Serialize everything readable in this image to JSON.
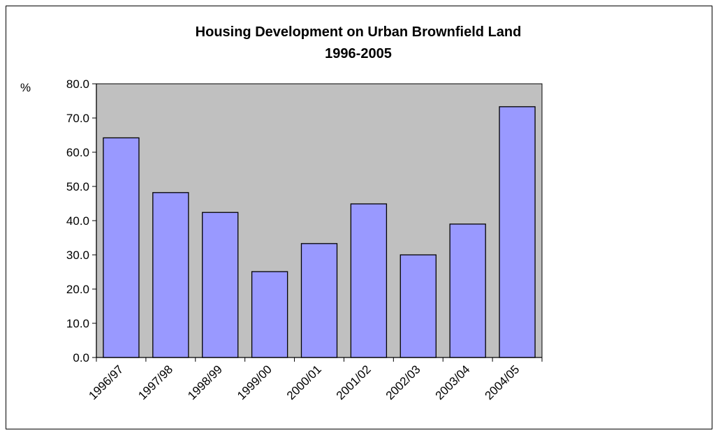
{
  "chart_data": {
    "type": "bar",
    "title": "Housing Development on Urban Brownfield Land",
    "subtitle": "1996-2005",
    "ylabel": "%",
    "xlabel": "",
    "categories": [
      "1996/97",
      "1997/98",
      "1998/99",
      "1999/00",
      "2000/01",
      "2001/02",
      "2002/03",
      "2003/04",
      "2004/05"
    ],
    "values": [
      64.2,
      48.2,
      42.4,
      25.1,
      33.3,
      44.9,
      30.0,
      39.0,
      73.3
    ],
    "ylim": [
      0,
      80
    ],
    "yticks": [
      "0.0",
      "10.0",
      "20.0",
      "30.0",
      "40.0",
      "50.0",
      "60.0",
      "70.0",
      "80.0"
    ],
    "grid": false,
    "legend": "none",
    "colors": {
      "bar": "#9999ff",
      "plot_area": "#c0c0c0",
      "border": "#000000"
    }
  }
}
